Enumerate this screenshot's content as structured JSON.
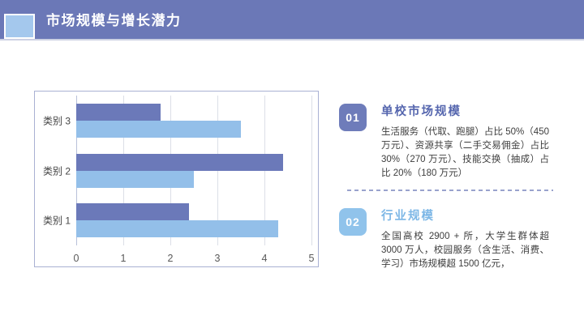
{
  "header": {
    "title": "市场规模与增长潜力",
    "bar_color": "#6b78b7",
    "accent_square_color": "#a4c8ed"
  },
  "chart_data": {
    "type": "bar",
    "orientation": "horizontal",
    "categories": [
      "类别 1",
      "类别 2",
      "类别 3"
    ],
    "series": [
      {
        "name": "series-light-blue",
        "color": "#93bfe9",
        "values": [
          4.3,
          2.5,
          3.5
        ]
      },
      {
        "name": "series-purple",
        "color": "#6b79b9",
        "values": [
          2.4,
          4.4,
          1.8
        ]
      }
    ],
    "xlim": [
      0,
      5
    ],
    "x_ticks": [
      "0",
      "1",
      "2",
      "3",
      "4",
      "5"
    ],
    "grid": true,
    "legend_position": "none",
    "gridline_color": "#dcdfe7",
    "zero_line_color": "#b9c1d9"
  },
  "info_panel": {
    "divider_color": "#99a2cd",
    "sections": [
      {
        "number": "01",
        "badge_color": "#6e7cba",
        "title": "单校市场规模",
        "title_color": "#5566ae",
        "body": "生活服务（代取、跑腿）占比 50%（450 万元）、资源共享（二手交易佣金）占比 30%（270 万元）、技能交换（抽成）占比 20%（180 万元）"
      },
      {
        "number": "02",
        "badge_color": "#90c3eb",
        "title": "行业规模",
        "title_color": "#7db7e6",
        "body": "全国高校 2900 + 所，大学生群体超 3000 万人，校园服务（含生活、消费、学习）市场规模超 1500 亿元，"
      }
    ]
  }
}
